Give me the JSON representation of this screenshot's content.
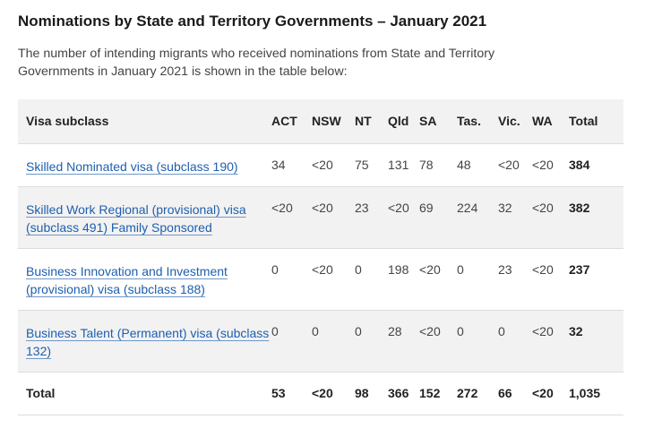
{
  "title": "Nominations by State and Territory Governments – January 2021",
  "intro": "The number of intending migrants who received nominations from State and Territory Governments in January 2021 is shown in the table below:",
  "table": {
    "headers": [
      "Visa subclass",
      "ACT",
      "NSW",
      "NT",
      "Qld",
      "SA",
      "Tas.",
      "Vic.",
      "WA",
      "Total"
    ],
    "rows": [
      {
        "visa": "Skilled Nominated visa (subclass 190)",
        "values": [
          "34",
          "<20",
          "75",
          "131",
          "78",
          "48",
          "<20",
          "<20"
        ],
        "total": "384"
      },
      {
        "visa": "Skilled Work Regional (provisional) visa (subclass 491) Family Sponsored",
        "values": [
          "<20",
          "<20",
          "23",
          "<20",
          "69",
          "224",
          "32",
          "<20"
        ],
        "total": "382"
      },
      {
        "visa": "Business Innovation and Investment (provisional) visa (subclass 188)",
        "values": [
          "0",
          "<20",
          "0",
          "198",
          "<20",
          "0",
          "23",
          "<20"
        ],
        "total": "237"
      },
      {
        "visa": "Business Talent (Permanent) visa (subclass 132)",
        "values": [
          "0",
          "0",
          "0",
          "28",
          "<20",
          "0",
          "0",
          "<20"
        ],
        "total": "32"
      }
    ],
    "total_row": {
      "label": "Total",
      "values": [
        "53",
        "<20",
        "98",
        "366",
        "152",
        "272",
        "66",
        "<20"
      ],
      "total": "1,035"
    }
  }
}
